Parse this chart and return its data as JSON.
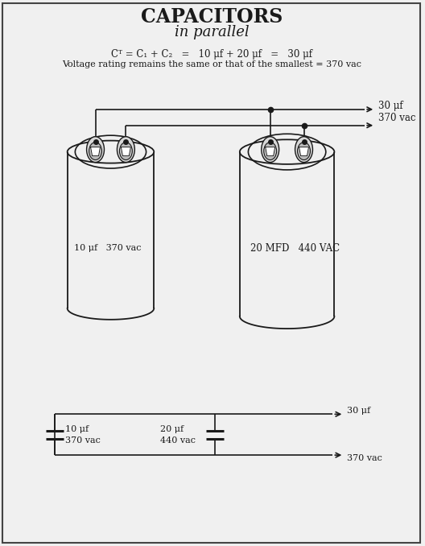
{
  "title": "CAPACITORS",
  "subtitle": "in parallel",
  "formula_line1": "Cᵀ = C₁ + C₂   =   10 μf + 20 μf   =   30 μf",
  "formula_line2": "Voltage rating remains the same or that of the smallest = 370 vac",
  "cap1_label": "10 μf   370 vac",
  "cap2_label": "20 MFD   440 VAC",
  "output_label1": "30 μf",
  "output_label2": "370 vac",
  "schematic_cap1_label1": "10 μf",
  "schematic_cap1_label2": "370 vac",
  "schematic_cap2_label1": "20 μf",
  "schematic_cap2_label2": "440 vac",
  "schematic_out_label1": "30 μf",
  "schematic_out_label2": "370 vac",
  "bg_color": "#f0f0f0",
  "line_color": "#1a1a1a",
  "text_color": "#1a1a1a"
}
